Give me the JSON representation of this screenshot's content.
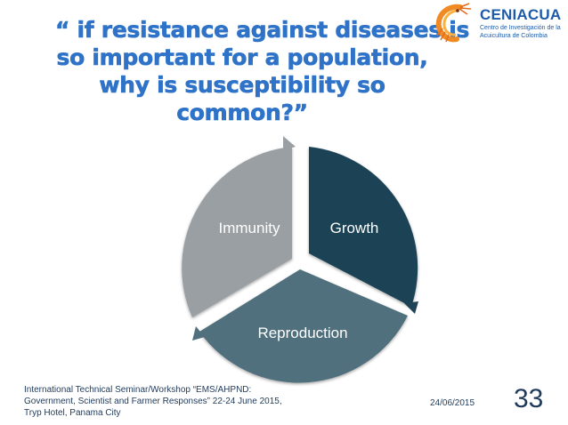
{
  "slide": {
    "title_lines": [
      "“ if resistance against diseases is",
      "so important for a population,",
      "why is susceptibility so",
      "common?”"
    ],
    "logo": {
      "name": "CENIACUA",
      "subtitle_lines": [
        "Centro de Investigación de la",
        "Acuicultura de Colombia"
      ],
      "icon": "shrimp-icon"
    },
    "diagram": {
      "type": "cycle",
      "segments": [
        {
          "label": "Growth",
          "color": "#1D4355"
        },
        {
          "label": "Reproduction",
          "color": "#51707D"
        },
        {
          "label": "Immunity",
          "color": "#9A9FA3"
        }
      ]
    },
    "footer": {
      "event_lines": [
        "International Technical Seminar/Workshop “EMS/AHPND:",
        "Government, Scientist and Farmer Responses” 22-24 June 2015,",
        "Tryp Hotel, Panama City"
      ],
      "date": "24/06/2015",
      "page_number": "33"
    },
    "colors": {
      "title": "#2F73C8",
      "brand": "#1E5BA8",
      "logo_accent": "#F08A24",
      "footer_text": "#1F3A5A"
    }
  }
}
